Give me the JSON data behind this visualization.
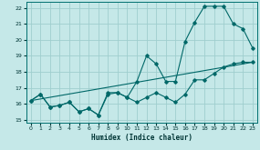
{
  "bg_color": "#c5e8e8",
  "grid_color": "#9fcece",
  "line_color": "#006868",
  "xlabel": "Humidex (Indice chaleur)",
  "xlim": [
    -0.5,
    23.5
  ],
  "ylim": [
    14.8,
    22.4
  ],
  "yticks": [
    15,
    16,
    17,
    18,
    19,
    20,
    21,
    22
  ],
  "xticks": [
    0,
    1,
    2,
    3,
    4,
    5,
    6,
    7,
    8,
    9,
    10,
    11,
    12,
    13,
    14,
    15,
    16,
    17,
    18,
    19,
    20,
    21,
    22,
    23
  ],
  "series1_x": [
    0,
    1,
    2,
    3,
    4,
    5,
    6,
    7,
    8,
    9,
    10,
    11,
    12,
    13,
    14,
    15,
    16,
    17,
    18,
    19,
    20,
    21,
    22,
    23
  ],
  "series1_y": [
    16.2,
    16.6,
    15.8,
    15.9,
    16.1,
    15.5,
    15.7,
    15.3,
    16.6,
    16.7,
    16.4,
    16.1,
    16.4,
    16.7,
    16.4,
    16.1,
    16.6,
    17.5,
    17.5,
    17.9,
    18.3,
    18.5,
    18.6,
    18.6
  ],
  "series2_x": [
    0,
    1,
    2,
    3,
    4,
    5,
    6,
    7,
    8,
    9,
    10,
    11,
    12,
    13,
    14,
    15,
    16,
    17,
    18,
    19,
    20,
    21,
    22,
    23
  ],
  "series2_y": [
    16.2,
    16.6,
    15.8,
    15.9,
    16.1,
    15.5,
    15.7,
    15.3,
    16.7,
    16.7,
    16.4,
    17.4,
    19.0,
    18.5,
    17.4,
    17.4,
    19.9,
    21.1,
    22.1,
    22.1,
    22.1,
    21.0,
    20.7,
    19.5
  ],
  "series3_x": [
    0,
    23
  ],
  "series3_y": [
    16.2,
    18.6
  ]
}
